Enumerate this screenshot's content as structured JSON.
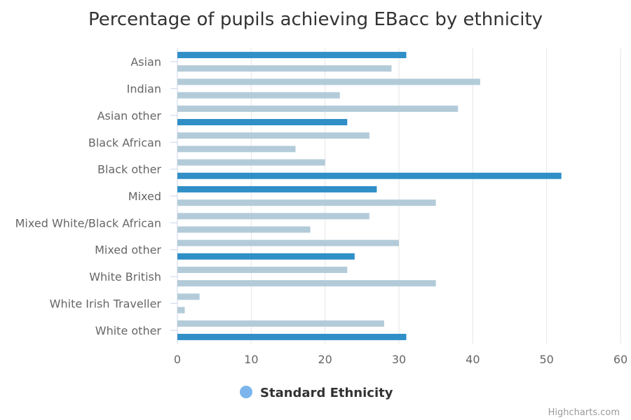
{
  "chart_data": {
    "type": "bar",
    "orientation": "horizontal",
    "title": "Percentage of pupils achieving EBacc by ethnicity",
    "xlabel": "",
    "ylabel": "",
    "xlim": [
      0,
      60
    ],
    "ticks": [
      0,
      10,
      20,
      30,
      40,
      50,
      60
    ],
    "grid": true,
    "legend_position": "bottom-center",
    "categories": [
      "Asian",
      "Indian",
      "Asian other",
      "Black African",
      "Black other",
      "Mixed",
      "Mixed White/Black African",
      "Mixed other",
      "White British",
      "White Irish Traveller",
      "White other"
    ],
    "rows": [
      {
        "value": 31,
        "group": "aggregate"
      },
      {
        "value": 29,
        "group": "standard"
      },
      {
        "value": 41,
        "group": "standard"
      },
      {
        "value": 22,
        "group": "standard"
      },
      {
        "value": 38,
        "group": "standard"
      },
      {
        "value": 23,
        "group": "aggregate"
      },
      {
        "value": 26,
        "group": "standard"
      },
      {
        "value": 16,
        "group": "standard"
      },
      {
        "value": 20,
        "group": "standard"
      },
      {
        "value": 52,
        "group": "aggregate"
      },
      {
        "value": 27,
        "group": "aggregate"
      },
      {
        "value": 35,
        "group": "standard"
      },
      {
        "value": 26,
        "group": "standard"
      },
      {
        "value": 18,
        "group": "standard"
      },
      {
        "value": 30,
        "group": "standard"
      },
      {
        "value": 24,
        "group": "aggregate"
      },
      {
        "value": 23,
        "group": "standard"
      },
      {
        "value": 35,
        "group": "standard"
      },
      {
        "value": 3,
        "group": "standard"
      },
      {
        "value": 1,
        "group": "standard"
      },
      {
        "value": 28,
        "group": "standard"
      },
      {
        "value": 31,
        "group": "aggregate"
      }
    ],
    "colors": {
      "aggregate": "#2f8fc6",
      "standard": "#b3cbd9",
      "legend": "#7cb5ec",
      "grid": "#e6e6e6",
      "axis": "#ccd6eb"
    },
    "legend": [
      {
        "name": "Standard Ethnicity",
        "color": "#7cb5ec"
      }
    ]
  },
  "credits": "Highcharts.com"
}
